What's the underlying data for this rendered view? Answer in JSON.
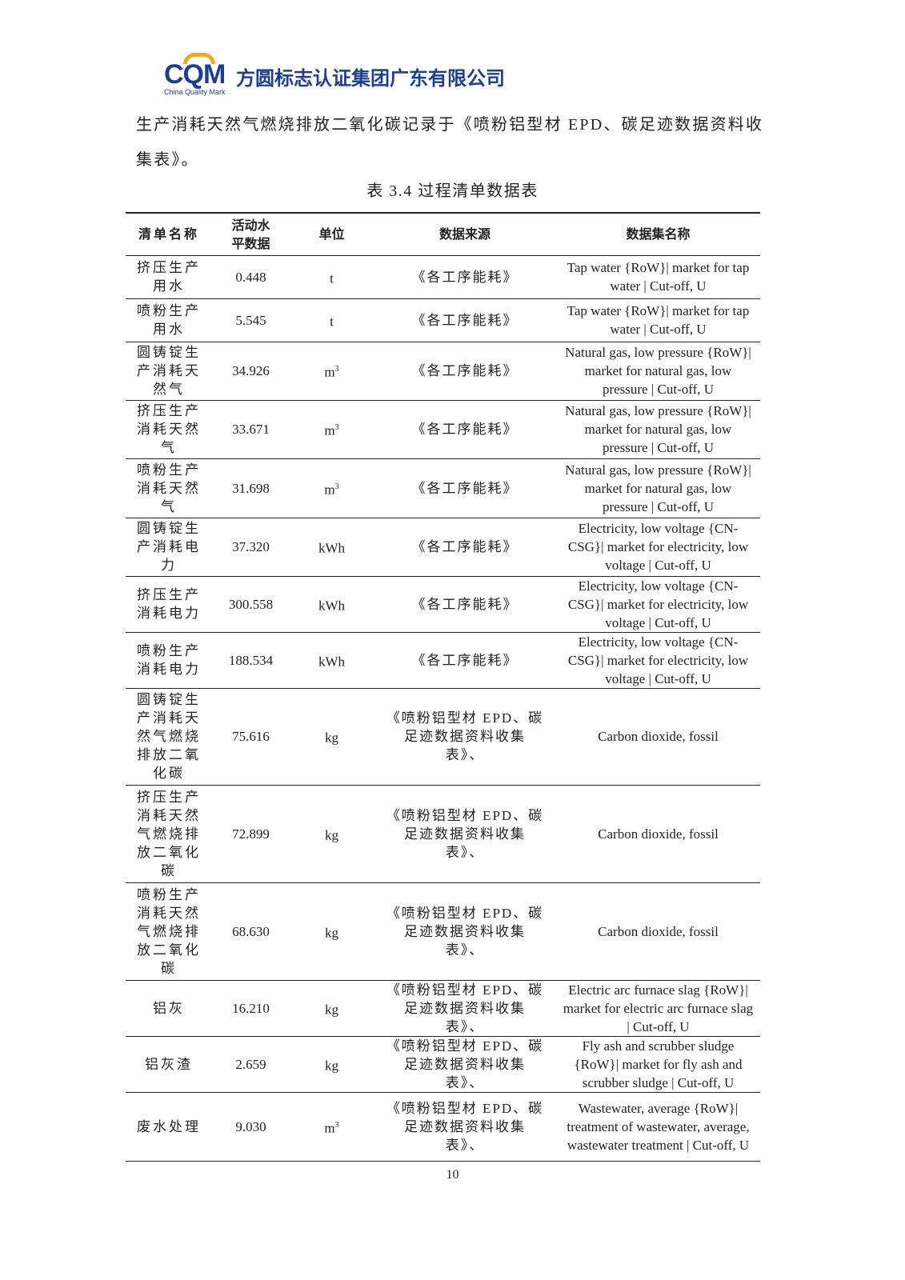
{
  "header": {
    "logo_text": "CQM",
    "logo_subtitle": "China Quality Mark",
    "company": "方圆标志认证集团广东有限公司",
    "brand_colors": {
      "blue": "#1d3f8f",
      "orange": "#f0a92a"
    }
  },
  "paragraph": "生产消耗天然气燃烧排放二氧化碳记录于《喷粉铝型材 EPD、碳足迹数据资料收集表》。",
  "table": {
    "caption": "表 3.4 过程清单数据表",
    "headers": [
      "清单名称",
      "活动水平数据",
      "单位",
      "数据来源",
      "数据集名称"
    ],
    "rows": [
      {
        "name": "挤压生产用水",
        "value": "0.448",
        "unit": "t",
        "unit_sup": "",
        "source": "《各工序能耗》",
        "dataset": "Tap water {RoW}| market for tap water | Cut-off, U"
      },
      {
        "name": "喷粉生产用水",
        "value": "5.545",
        "unit": "t",
        "unit_sup": "",
        "source": "《各工序能耗》",
        "dataset": "Tap water {RoW}| market for tap water | Cut-off, U"
      },
      {
        "name": "圆铸锭生产消耗天然气",
        "value": "34.926",
        "unit": "m",
        "unit_sup": "3",
        "source": "《各工序能耗》",
        "dataset": "Natural gas, low pressure {RoW}| market for natural gas, low pressure | Cut-off, U"
      },
      {
        "name": "挤压生产消耗天然气",
        "value": "33.671",
        "unit": "m",
        "unit_sup": "3",
        "source": "《各工序能耗》",
        "dataset": "Natural gas, low pressure {RoW}| market for natural gas, low pressure | Cut-off, U"
      },
      {
        "name": "喷粉生产消耗天然气",
        "value": "31.698",
        "unit": "m",
        "unit_sup": "3",
        "source": "《各工序能耗》",
        "dataset": "Natural gas, low pressure {RoW}| market for natural gas, low pressure | Cut-off, U"
      },
      {
        "name": "圆铸锭生产消耗电力",
        "value": "37.320",
        "unit": "kWh",
        "unit_sup": "",
        "source": "《各工序能耗》",
        "dataset": "Electricity, low voltage {CN-CSG}| market for electricity, low voltage | Cut-off, U"
      },
      {
        "name": "挤压生产消耗电力",
        "value": "300.558",
        "unit": "kWh",
        "unit_sup": "",
        "source": "《各工序能耗》",
        "dataset": "Electricity, low voltage {CN-CSG}| market for electricity, low voltage | Cut-off, U"
      },
      {
        "name": "喷粉生产消耗电力",
        "value": "188.534",
        "unit": "kWh",
        "unit_sup": "",
        "source": "《各工序能耗》",
        "dataset": "Electricity, low voltage {CN-CSG}| market for electricity, low voltage | Cut-off, U"
      },
      {
        "name": "圆铸锭生产消耗天然气燃烧排放二氧化碳",
        "value": "75.616",
        "unit": "kg",
        "unit_sup": "",
        "source": "《喷粉铝型材 EPD、碳足迹数据资料收集表》、",
        "dataset": "Carbon dioxide, fossil"
      },
      {
        "name": "挤压生产消耗天然气燃烧排放二氧化碳",
        "value": "72.899",
        "unit": "kg",
        "unit_sup": "",
        "source": "《喷粉铝型材 EPD、碳足迹数据资料收集表》、",
        "dataset": "Carbon dioxide, fossil"
      },
      {
        "name": "喷粉生产消耗天然气燃烧排放二氧化碳",
        "value": "68.630",
        "unit": "kg",
        "unit_sup": "",
        "source": "《喷粉铝型材 EPD、碳足迹数据资料收集表》、",
        "dataset": "Carbon dioxide, fossil"
      },
      {
        "name": "铝灰",
        "value": "16.210",
        "unit": "kg",
        "unit_sup": "",
        "source": "《喷粉铝型材 EPD、碳足迹数据资料收集表》、",
        "dataset": "Electric arc furnace slag {RoW}| market for electric arc furnace slag | Cut-off, U"
      },
      {
        "name": "铝灰渣",
        "value": "2.659",
        "unit": "kg",
        "unit_sup": "",
        "source": "《喷粉铝型材 EPD、碳足迹数据资料收集表》、",
        "dataset": "Fly ash and scrubber sludge {RoW}| market for fly ash and scrubber sludge | Cut-off, U"
      },
      {
        "name": "废水处理",
        "value": "9.030",
        "unit": "m",
        "unit_sup": "3",
        "source": "《喷粉铝型材 EPD、碳足迹数据资料收集表》、",
        "dataset": "Wastewater, average {RoW}| treatment of wastewater, average, wastewater treatment | Cut-off, U"
      }
    ]
  },
  "page_number": "10"
}
